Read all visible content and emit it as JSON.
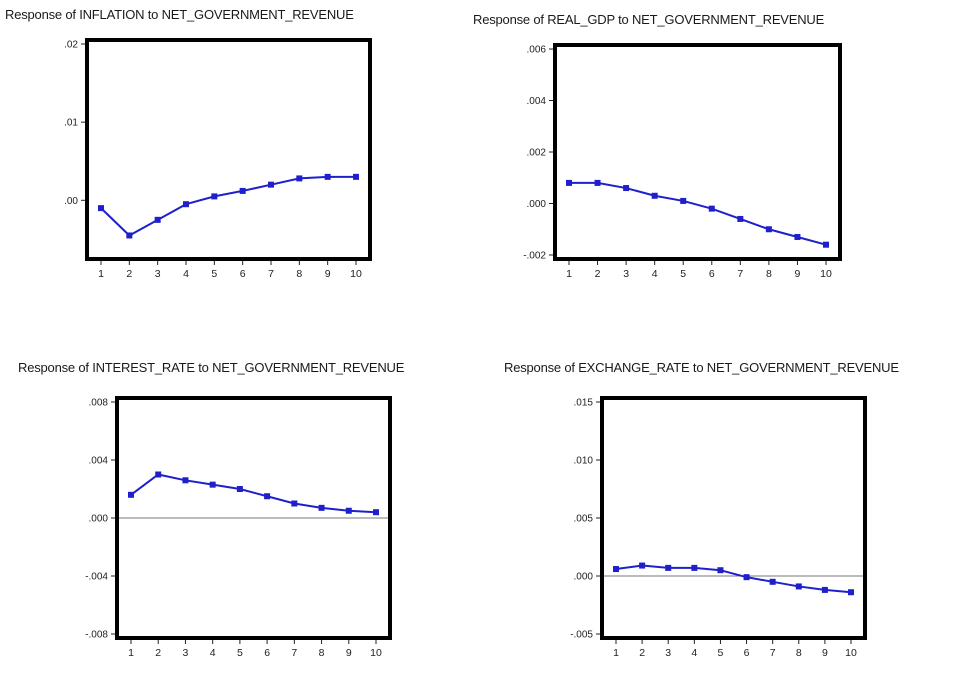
{
  "chart_data": [
    {
      "type": "line",
      "title": "Response of INFLATION to NET_GOVERNMENT_REVENUE",
      "x": [
        1,
        2,
        3,
        4,
        5,
        6,
        7,
        8,
        9,
        10
      ],
      "series": [
        {
          "values": [
            -0.001,
            -0.0045,
            -0.0025,
            -0.0005,
            0.0005,
            0.0012,
            0.002,
            0.0028,
            0.003,
            0.003
          ]
        }
      ],
      "ytick_labels": [
        ".02",
        ".01",
        ".00"
      ],
      "ytick_values": [
        0.02,
        0.01,
        0.0
      ],
      "ylim": [
        -0.007,
        0.02
      ],
      "zero_line": false,
      "xlabel": "",
      "ylabel": "",
      "color": "#1f1fcc",
      "grid": false
    },
    {
      "type": "line",
      "title": "Response of REAL_GDP to NET_GOVERNMENT_REVENUE",
      "x": [
        1,
        2,
        3,
        4,
        5,
        6,
        7,
        8,
        9,
        10
      ],
      "series": [
        {
          "values": [
            0.0008,
            0.0008,
            0.0006,
            0.0003,
            0.0001,
            -0.0002,
            -0.0006,
            -0.001,
            -0.0013,
            -0.0016
          ]
        }
      ],
      "ytick_labels": [
        ".006",
        ".004",
        ".002",
        ".000",
        "-.002"
      ],
      "ytick_values": [
        0.006,
        0.004,
        0.002,
        0.0,
        -0.002
      ],
      "ylim": [
        -0.002,
        0.006
      ],
      "zero_line": false,
      "xlabel": "",
      "ylabel": "",
      "color": "#1f1fcc",
      "grid": false
    },
    {
      "type": "line",
      "title": "Response of INTEREST_RATE to NET_GOVERNMENT_REVENUE",
      "x": [
        1,
        2,
        3,
        4,
        5,
        6,
        7,
        8,
        9,
        10
      ],
      "series": [
        {
          "values": [
            0.0016,
            0.003,
            0.0026,
            0.0023,
            0.002,
            0.0015,
            0.001,
            0.0007,
            0.0005,
            0.0004
          ]
        }
      ],
      "ytick_labels": [
        ".008",
        ".004",
        ".000",
        "-.004",
        "-.008"
      ],
      "ytick_values": [
        0.008,
        0.004,
        0.0,
        -0.004,
        -0.008
      ],
      "ylim": [
        -0.008,
        0.008
      ],
      "zero_line": true,
      "xlabel": "",
      "ylabel": "",
      "color": "#1f1fcc",
      "grid": false
    },
    {
      "type": "line",
      "title": "Response of EXCHANGE_RATE to NET_GOVERNMENT_REVENUE",
      "x": [
        1,
        2,
        3,
        4,
        5,
        6,
        7,
        8,
        9,
        10
      ],
      "series": [
        {
          "values": [
            0.0006,
            0.0009,
            0.0007,
            0.0007,
            0.0005,
            -0.0001,
            -0.0005,
            -0.0009,
            -0.0012,
            -0.0014
          ]
        }
      ],
      "ytick_labels": [
        ".015",
        ".010",
        ".005",
        ".000",
        "-.005"
      ],
      "ytick_values": [
        0.015,
        0.01,
        0.005,
        0.0,
        -0.005
      ],
      "ylim": [
        -0.005,
        0.015
      ],
      "zero_line": true,
      "xlabel": "",
      "ylabel": "",
      "color": "#1f1fcc",
      "grid": false
    }
  ]
}
